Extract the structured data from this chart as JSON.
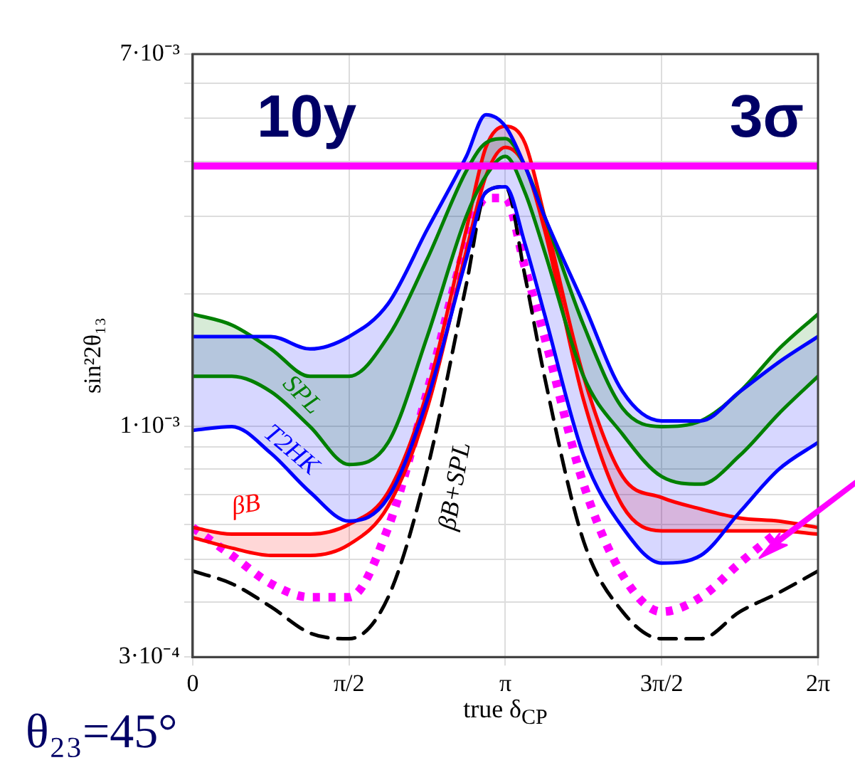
{
  "chart_data": {
    "type": "line",
    "xlabel": "true δ$_{CP}$",
    "ylabel": "sin²2θ₁₃",
    "annotations": [
      "10y",
      "3σ",
      "θ₂₃=45°"
    ],
    "x": [
      0,
      0.3927,
      0.7854,
      1.1781,
      1.5708,
      1.9635,
      2.3562,
      2.7489,
      2.9452,
      3.1416,
      3.3379,
      3.5343,
      3.927,
      4.3197,
      4.7124,
      5.1051,
      5.4978,
      5.8905,
      6.2832
    ],
    "xlim": [
      0,
      6.2832
    ],
    "xticks": [
      0,
      {
        "value": 1.5708,
        "label": "π/2"
      },
      {
        "value": 3.1416,
        "label": "π"
      },
      {
        "value": 4.7124,
        "label": "3π/2"
      },
      {
        "value": 6.2832,
        "label": "2π"
      }
    ],
    "log": "y",
    "ylim": [
      0.0003,
      0.007
    ],
    "yticks": [
      {
        "value": 0.0003,
        "label": "3·10⁻⁴"
      },
      {
        "value": 0.0004,
        "label": null
      },
      {
        "value": 0.0005,
        "label": null
      },
      {
        "value": 0.0006,
        "label": null
      },
      {
        "value": 0.0007,
        "label": null
      },
      {
        "value": 0.0008,
        "label": null
      },
      {
        "value": 0.0009,
        "label": null
      },
      {
        "value": 0.001,
        "label": "1·10⁻³"
      },
      {
        "value": 0.002,
        "label": null
      },
      {
        "value": 0.003,
        "label": null
      },
      {
        "value": 0.004,
        "label": null
      },
      {
        "value": 0.005,
        "label": null
      },
      {
        "value": 0.006,
        "label": null
      },
      {
        "value": 0.007,
        "label": "7·10⁻³"
      }
    ],
    "grid": true,
    "legend": false,
    "ref_lines": [
      {
        "axis": "y",
        "value": 0.0039,
        "color": "#ff00ff"
      }
    ],
    "series": [
      {
        "name": "T2HK",
        "color": "#0000ff",
        "values": [
          0.0016,
          0.0016,
          0.0016,
          0.0015,
          0.0016,
          0.0019,
          0.0028,
          0.0041,
          0.0051,
          0.0048,
          0.0039,
          0.003,
          0.0019,
          0.0012,
          0.00103,
          0.00103,
          0.0012,
          0.0014,
          0.0016
        ],
        "upper": [
          0.0016,
          0.0016,
          0.0016,
          0.0015,
          0.0016,
          0.0019,
          0.0028,
          0.0041,
          0.0051,
          0.0048,
          0.0039,
          0.003,
          0.0019,
          0.0012,
          0.00103,
          0.00103,
          0.0012,
          0.0014,
          0.0016
        ],
        "lower": [
          0.00098,
          0.001,
          0.00087,
          0.00071,
          0.00061,
          0.00069,
          0.00115,
          0.0024,
          0.0034,
          0.0035,
          0.0026,
          0.0018,
          0.00086,
          0.00059,
          0.00049,
          0.00051,
          0.00064,
          0.0008,
          0.00092
        ]
      },
      {
        "color": "#0000ff",
        "values": [
          0.00098,
          0.001,
          0.00087,
          0.00071,
          0.00061,
          0.00069,
          0.00115,
          0.0024,
          0.0034,
          0.0035,
          0.0026,
          0.0018,
          0.00086,
          0.00059,
          0.00049,
          0.00051,
          0.00064,
          0.0008,
          0.00092
        ]
      },
      {
        "name": "SPL",
        "color": "#008000",
        "values": [
          0.0018,
          0.0017,
          0.0015,
          0.0013,
          0.0013,
          0.0016,
          0.0024,
          0.0038,
          0.0044,
          0.0045,
          0.0039,
          0.003,
          0.0017,
          0.0011,
          0.001,
          0.00103,
          0.0012,
          0.0015,
          0.0018
        ],
        "upper": [
          0.0018,
          0.0017,
          0.0015,
          0.0013,
          0.0013,
          0.0016,
          0.0024,
          0.0038,
          0.0044,
          0.0045,
          0.0039,
          0.003,
          0.0017,
          0.0011,
          0.001,
          0.00103,
          0.0012,
          0.0015,
          0.0018
        ],
        "lower": [
          0.0013,
          0.0013,
          0.0012,
          0.001,
          0.00082,
          0.00092,
          0.0016,
          0.003,
          0.0037,
          0.0041,
          0.0034,
          0.0025,
          0.0013,
          0.00096,
          0.00077,
          0.00074,
          0.00086,
          0.00107,
          0.0013
        ]
      },
      {
        "color": "#008000",
        "values": [
          0.0013,
          0.0013,
          0.0012,
          0.001,
          0.00082,
          0.00092,
          0.0016,
          0.003,
          0.0037,
          0.0041,
          0.0034,
          0.0025,
          0.0013,
          0.00096,
          0.00077,
          0.00074,
          0.00086,
          0.00107,
          0.0013
        ]
      },
      {
        "name": "βB",
        "color": "#ff0000",
        "values": [
          0.00059,
          0.00057,
          0.00057,
          0.00057,
          0.0006,
          0.00071,
          0.0012,
          0.0028,
          0.0043,
          0.0048,
          0.0044,
          0.003,
          0.0013,
          0.00077,
          0.00069,
          0.00065,
          0.00062,
          0.00061,
          0.00059
        ],
        "upper": [
          0.00059,
          0.00057,
          0.00057,
          0.00057,
          0.0006,
          0.00071,
          0.0012,
          0.0028,
          0.0043,
          0.0048,
          0.0044,
          0.003,
          0.0013,
          0.00077,
          0.00069,
          0.00065,
          0.00062,
          0.00061,
          0.00059
        ],
        "lower": [
          0.00056,
          0.00053,
          0.00051,
          0.00051,
          0.00054,
          0.00066,
          0.0011,
          0.0025,
          0.0037,
          0.0043,
          0.0039,
          0.0028,
          0.00115,
          0.00066,
          0.00058,
          0.00058,
          0.00058,
          0.00058,
          0.00057
        ]
      },
      {
        "color": "#ff0000",
        "values": [
          0.00056,
          0.00053,
          0.00051,
          0.00051,
          0.00054,
          0.00066,
          0.0011,
          0.0025,
          0.0037,
          0.0043,
          0.0039,
          0.0028,
          0.00115,
          0.00066,
          0.00058,
          0.00058,
          0.00058,
          0.00058,
          0.00057
        ]
      },
      {
        "name": "βB+SPL",
        "color": "#000000",
        "line_style": "dashed",
        "values": [
          0.00047,
          0.00044,
          0.00039,
          0.00034,
          0.00033,
          0.00041,
          0.0008,
          0.0021,
          0.0034,
          0.0035,
          0.0022,
          0.0013,
          0.00055,
          0.00038,
          0.00033,
          0.00033,
          0.00038,
          0.00042,
          0.00047
        ]
      },
      {
        "color": "#ff00ff",
        "line_style": "dotted",
        "values": [
          0.00059,
          0.00051,
          0.00044,
          0.00041,
          0.00041,
          0.00059,
          0.0012,
          0.0026,
          0.0033,
          0.0033,
          0.0023,
          0.0016,
          0.00074,
          0.00046,
          0.00038,
          0.00041,
          0.00049,
          0.00058,
          null
        ]
      }
    ]
  }
}
